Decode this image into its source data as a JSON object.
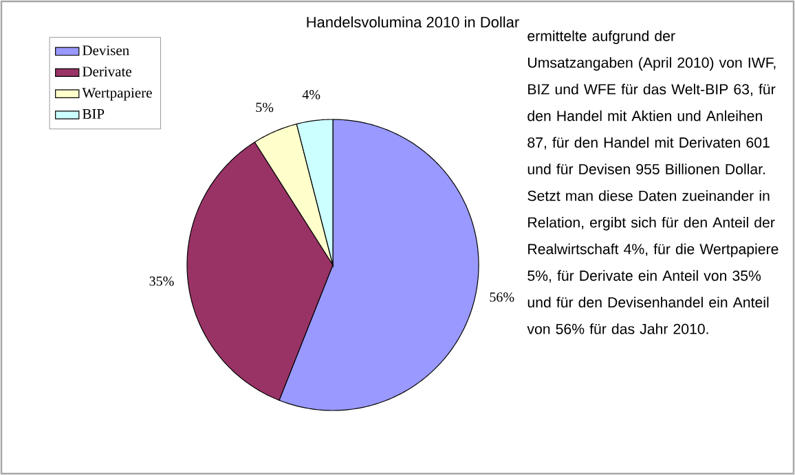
{
  "chart_data": {
    "type": "pie",
    "title": "Handelsvolumina 2010 in Dollar",
    "categories": [
      "Devisen",
      "Derivate",
      "Wertpapiere",
      "BIP"
    ],
    "values": [
      56,
      35,
      5,
      4
    ],
    "value_labels": [
      "56%",
      "35%",
      "5%",
      "4%"
    ],
    "colors": [
      "#9999ff",
      "#993366",
      "#ffffcc",
      "#ccffff"
    ],
    "legend": "top left",
    "annotations": [
      "ermittelte aufgrund der Umsatzangaben (April 2010) von IWF, BIZ und WFE für das Welt-BIP 63, für den Handel mit Aktien und Anleihen 87, für den Handel mit Derivaten 601 und für Devisen 955 Billionen Dollar. Setzt man diese Daten zueinander in Relation, ergibt sich für den Anteil der Realwirtschaft 4%, für die Wertpapiere 5%, für Derivate ein Anteil von 35% und für den Devisenhandel ein Anteil von 56% für das Jahr 2010."
    ]
  }
}
